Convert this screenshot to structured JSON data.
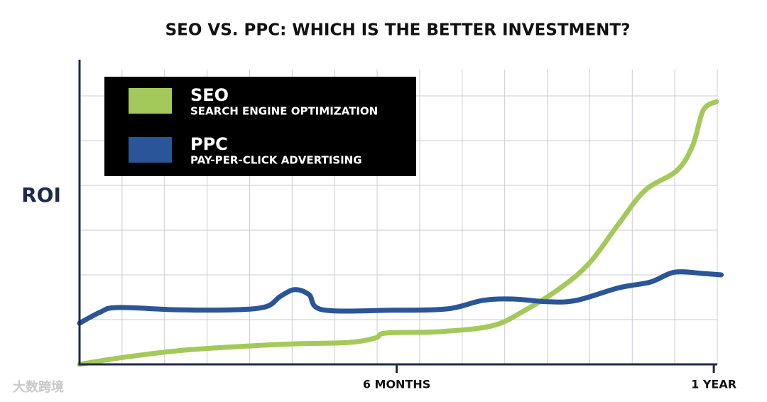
{
  "chart_data": {
    "type": "line",
    "title": "SEO VS. PPC: WHICH IS THE BETTER INVESTMENT?",
    "y_label": "ROI",
    "watermark": "大数跨境",
    "xlim": [
      0,
      12.2
    ],
    "xticks": [
      {
        "value": 6,
        "label": "6 MONTHS"
      },
      {
        "value": 12,
        "label": "1 YEAR"
      }
    ],
    "ylim": [
      0,
      7
    ],
    "ygrid": [
      1,
      2,
      3,
      4,
      5,
      6
    ],
    "grid": true,
    "series": [
      {
        "name": "SEO",
        "description": "SEARCH ENGINE OPTIMIZATION",
        "color": "#a4c95b",
        "x": [
          0,
          0.85,
          2,
          3.2,
          4.1,
          5.1,
          5.6,
          5.8,
          6.8,
          7.8,
          8.4,
          9.1,
          9.65,
          10.2,
          10.7,
          11.3,
          11.6,
          11.8,
          12.05
        ],
        "values": [
          0,
          0.16,
          0.32,
          0.41,
          0.46,
          0.49,
          0.59,
          0.7,
          0.73,
          0.86,
          1.19,
          1.71,
          2.27,
          3.14,
          3.89,
          4.33,
          4.89,
          5.68,
          5.87
        ]
      },
      {
        "name": "PPC",
        "description": "PAY-PER-CLICK ADVERTISING",
        "color": "#2a5597",
        "x": [
          0,
          0.38,
          0.71,
          1.85,
          2.93,
          3.53,
          3.8,
          4.07,
          4.34,
          4.6,
          5.9,
          6.96,
          7.63,
          8.2,
          8.85,
          9.4,
          10.2,
          10.8,
          11.26,
          11.8,
          12.14
        ],
        "values": [
          0.92,
          1.16,
          1.27,
          1.22,
          1.22,
          1.29,
          1.52,
          1.67,
          1.56,
          1.22,
          1.21,
          1.24,
          1.43,
          1.46,
          1.4,
          1.43,
          1.71,
          1.84,
          2.06,
          2.03,
          2.0
        ]
      }
    ]
  }
}
